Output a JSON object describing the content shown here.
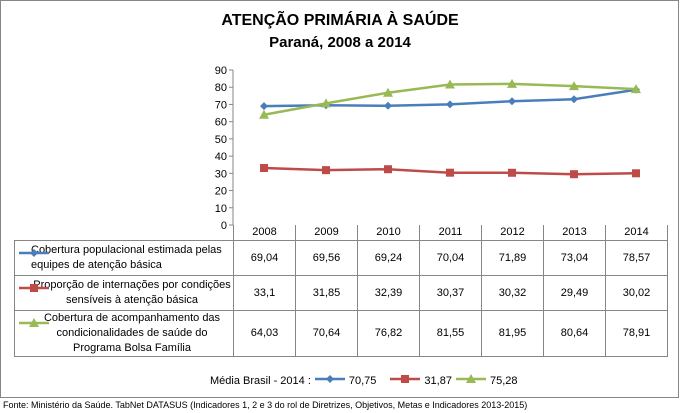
{
  "chart_data": {
    "type": "line",
    "title": "ATENÇÃO PRIMÁRIA À SAÚDE",
    "subtitle": "Paraná, 2008 a 2014",
    "categories": [
      "2008",
      "2009",
      "2010",
      "2011",
      "2012",
      "2013",
      "2014"
    ],
    "ylim": [
      0,
      90
    ],
    "yticks": [
      "0",
      "10",
      "20",
      "30",
      "40",
      "50",
      "60",
      "70",
      "80",
      "90"
    ],
    "grid": false,
    "series": [
      {
        "name": "Cobertura populacional estimada pelas equipes de atenção básica",
        "color": "#4a7ebb",
        "marker": "diamond",
        "values": [
          69.04,
          69.56,
          69.24,
          70.04,
          71.89,
          73.04,
          78.57
        ],
        "labels": [
          "69,04",
          "69,56",
          "69,24",
          "70,04",
          "71,89",
          "73,04",
          "78,57"
        ]
      },
      {
        "name": "Proporção de internações por condições sensíveis à atenção básica",
        "color": "#be4b48",
        "marker": "square",
        "values": [
          33.1,
          31.85,
          32.39,
          30.37,
          30.32,
          29.49,
          30.02
        ],
        "labels": [
          "33,1",
          "31,85",
          "32,39",
          "30,37",
          "30,32",
          "29,49",
          "30,02"
        ]
      },
      {
        "name": "Cobertura de acompanhamento das condicionalidades de saúde do Programa Bolsa Família",
        "color": "#98b954",
        "marker": "triangle",
        "values": [
          64.03,
          70.64,
          76.82,
          81.55,
          81.95,
          80.64,
          78.91
        ],
        "labels": [
          "64,03",
          "70,64",
          "76,82",
          "81,55",
          "81,95",
          "80,64",
          "78,91"
        ]
      }
    ],
    "legend_placement": "table"
  },
  "media": {
    "label": "Média Brasil - 2014 :",
    "values": [
      "70,75",
      "31,87",
      "75,28"
    ]
  },
  "source": "Fonte: Ministério da Saúde. TabNet DATASUS (Indicadores 1, 2 e 3 do rol de Diretrizes, Objetivos, Metas e Indicadores 2013-2015)"
}
